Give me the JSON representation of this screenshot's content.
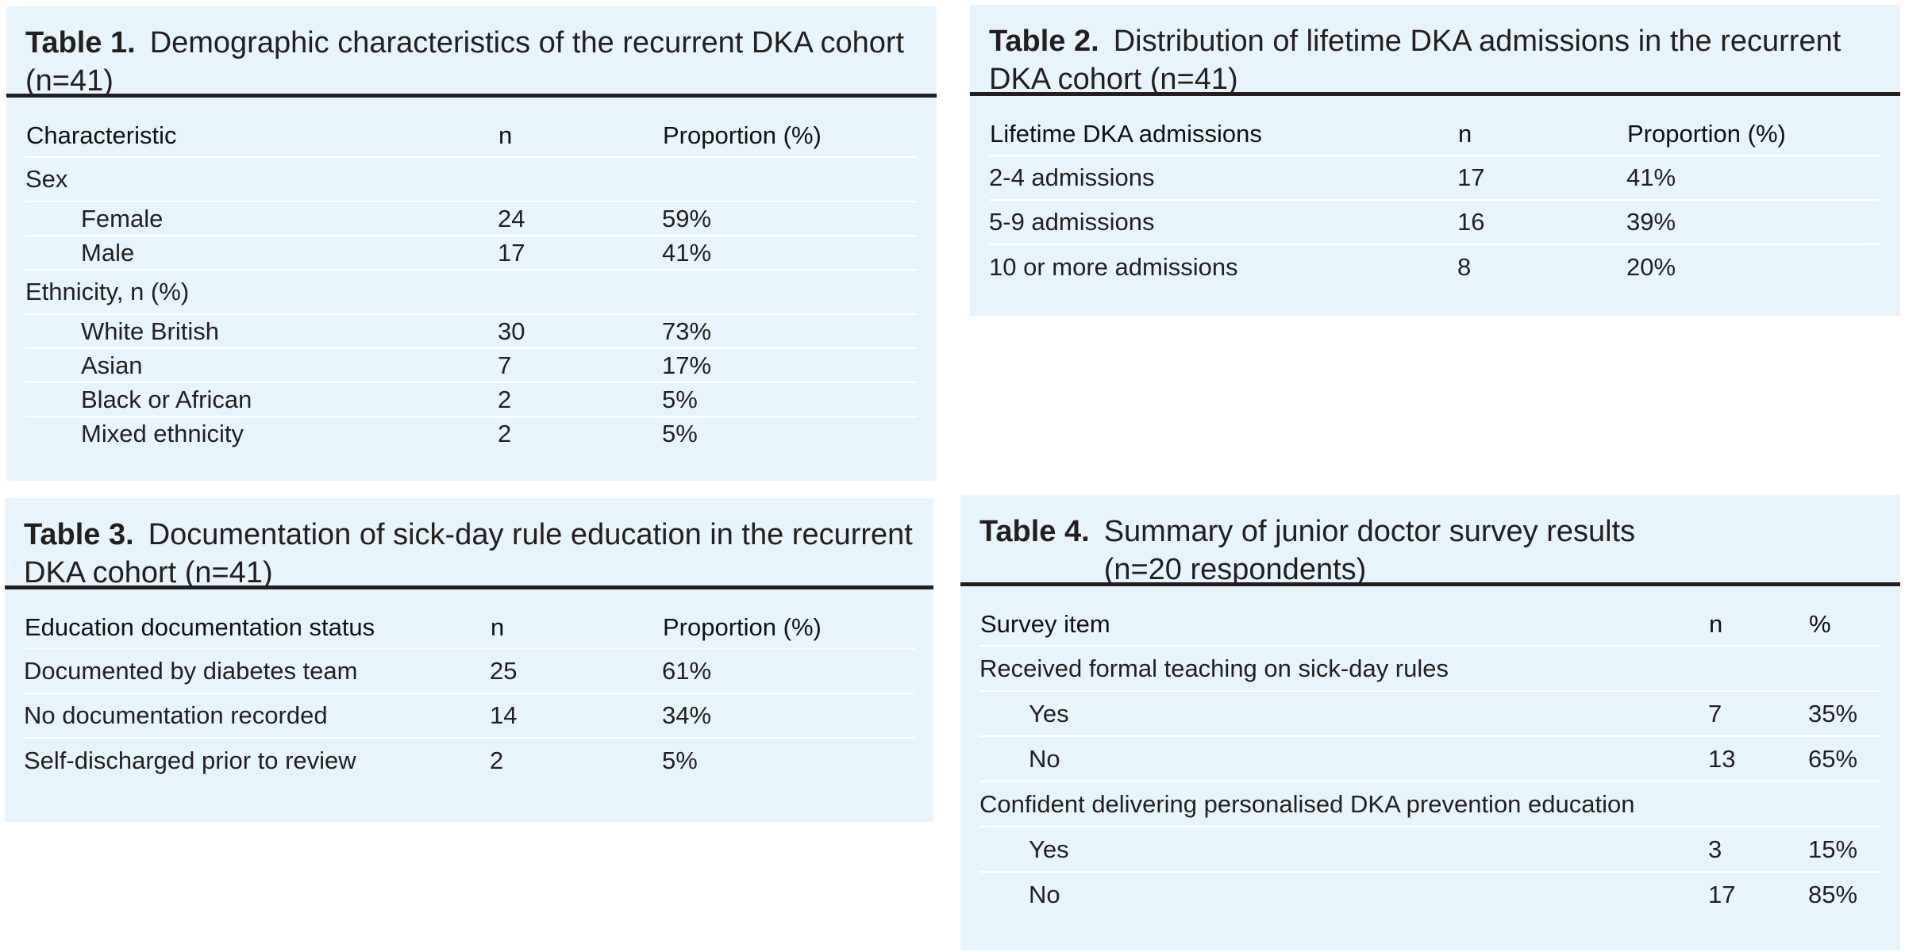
{
  "table1": {
    "label": "Table 1.",
    "title": "Demographic characteristics of the recurrent DKA cohort (n=41)",
    "headers": [
      "Characteristic",
      "n",
      "Proportion (%)"
    ],
    "rows": [
      {
        "label": "Sex",
        "n": "",
        "p": "",
        "indent": false
      },
      {
        "label": "Female",
        "n": "24",
        "p": "59%",
        "indent": true
      },
      {
        "label": "Male",
        "n": "17",
        "p": "41%",
        "indent": true
      },
      {
        "label": "Ethnicity, n (%)",
        "n": "",
        "p": "",
        "indent": false
      },
      {
        "label": "White British",
        "n": "30",
        "p": "73%",
        "indent": true
      },
      {
        "label": "Asian",
        "n": "7",
        "p": "17%",
        "indent": true
      },
      {
        "label": "Black or African",
        "n": "2",
        "p": "5%",
        "indent": true
      },
      {
        "label": "Mixed ethnicity",
        "n": "2",
        "p": "5%",
        "indent": true
      }
    ]
  },
  "table2": {
    "label": "Table 2.",
    "title": "Distribution of lifetime DKA admissions in the recurrent DKA cohort (n=41)",
    "headers": [
      "Lifetime DKA admissions",
      "n",
      "Proportion (%)"
    ],
    "rows": [
      {
        "label": "2-4 admissions",
        "n": "17",
        "p": "41%"
      },
      {
        "label": "5-9 admissions",
        "n": "16",
        "p": "39%"
      },
      {
        "label": "10 or more admissions",
        "n": "8",
        "p": "20%"
      }
    ]
  },
  "table3": {
    "label": "Table 3.",
    "title": "Documentation of sick-day rule education in the recurrent DKA cohort (n=41)",
    "headers": [
      "Education documentation status",
      "n",
      "Proportion (%)"
    ],
    "rows": [
      {
        "label": "Documented by diabetes team",
        "n": "25",
        "p": "61%"
      },
      {
        "label": "No documentation recorded",
        "n": "14",
        "p": "34%"
      },
      {
        "label": "Self-discharged prior to review",
        "n": "2",
        "p": "5%"
      }
    ]
  },
  "table4": {
    "label": "Table 4.",
    "title": "Summary of junior doctor survey results (n=20 respondents)",
    "headers": [
      "Survey item",
      "n",
      "%"
    ],
    "rows": [
      {
        "label": "Received formal teaching on sick-day rules",
        "n": "",
        "p": "",
        "indent": false
      },
      {
        "label": "Yes",
        "n": "7",
        "p": "35%",
        "indent": true
      },
      {
        "label": "No",
        "n": "13",
        "p": "65%",
        "indent": true
      },
      {
        "label": "Confident delivering personalised DKA prevention education",
        "n": "",
        "p": "",
        "indent": false
      },
      {
        "label": "Yes",
        "n": "3",
        "p": "15%",
        "indent": true
      },
      {
        "label": "No",
        "n": "17",
        "p": "85%",
        "indent": true
      }
    ]
  }
}
